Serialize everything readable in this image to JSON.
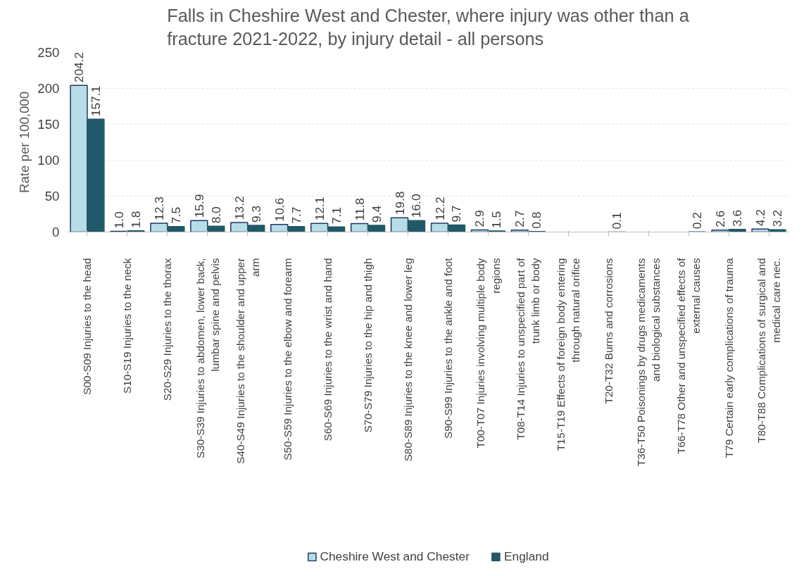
{
  "chart_data": {
    "type": "bar",
    "title": "Falls in Cheshire West and Chester, where injury was other than a fracture 2021-2022, by injury detail - all persons",
    "ylabel": "Rate per 100,000",
    "categories": [
      "S00-S09 Injuries to the head",
      "S10-S19 Injuries to the neck",
      "S20-S29 Injuries to the thorax",
      "S30-S39 Injuries to abdomen, lower back, lumbar spine and pelvis",
      "S40-S49 Injuries to the shoulder and upper arm",
      "S50-S59 Injuries to the elbow and forearm",
      "S60-S69 Injuries to the wrist and hand",
      "S70-S79 Injuries to the hip and thigh",
      "S80-S89 Injuries to the knee and lower leg",
      "S90-S99 Injuries to the ankle and foot",
      "T00-T07 Injuries involving multiple body regions",
      "T08-T14 Injuries to unspecified part of trunk limb or body",
      "T15-T19 Effects of foreign body entering through natural orifice",
      "T20-T32 Burns and corrosions",
      "T36-T50 Poisonings by drugs medicaments and biological substances",
      "T66-T78 Other and unspecified effects of external causes",
      "T79 Certain early complications of trauma",
      "T80-T88 Complications of surgical and medical care nec."
    ],
    "series": [
      {
        "name": "Cheshire West and Chester",
        "color": "#b7dde8",
        "values": [
          204.2,
          1.0,
          12.3,
          15.9,
          13.2,
          10.6,
          12.1,
          11.8,
          19.8,
          12.2,
          2.9,
          2.7,
          null,
          null,
          null,
          null,
          2.6,
          4.2
        ],
        "value_labels": [
          "204.2",
          "1.0",
          "12.3",
          "15.9",
          "13.2",
          "10.6",
          "12.1",
          "11.8",
          "19.8",
          "12.2",
          "2.9",
          "2.7",
          null,
          null,
          null,
          null,
          "2.6",
          "4.2"
        ]
      },
      {
        "name": "England",
        "color": "#215968",
        "values": [
          157.1,
          1.8,
          7.5,
          8.0,
          9.3,
          7.7,
          7.1,
          9.4,
          16.0,
          9.7,
          1.5,
          0.8,
          null,
          0.1,
          null,
          0.2,
          3.6,
          3.2
        ],
        "value_labels": [
          "157.1",
          "1.8",
          "7.5",
          "8.0",
          "9.3",
          "7.7",
          "7.1",
          "9.4",
          "16.0",
          "9.7",
          "1.5",
          "0.8",
          null,
          "0.1",
          null,
          "0.2",
          "3.6",
          "3.2"
        ]
      }
    ],
    "ylim": [
      0,
      250
    ],
    "yticks": [
      0,
      50,
      100,
      150,
      200,
      250
    ],
    "grid": "y",
    "legend": "bottom",
    "data_labels": true
  }
}
